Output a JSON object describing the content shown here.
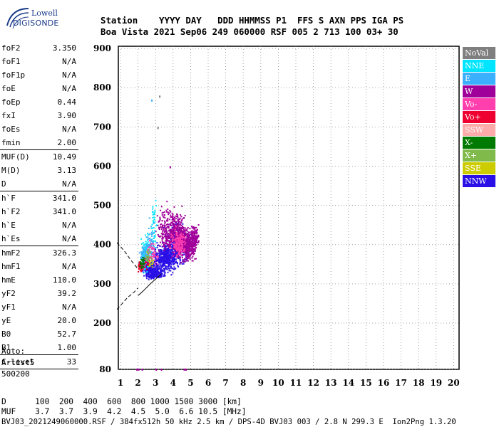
{
  "logo": {
    "line1": "Lowell",
    "line2": "DIGISONDE"
  },
  "header": {
    "row1": "Station    YYYY DAY   DDD HHMMSS P1  FFS S AXN PPS IGA PS",
    "row2": "Boa Vista 2021 Sep06 249 060000 RSF 005 2 713 100 03+ 30"
  },
  "params": [
    {
      "name": "foF2",
      "value": "3.350"
    },
    {
      "name": "foF1",
      "value": "N/A"
    },
    {
      "name": "foF1p",
      "value": "N/A"
    },
    {
      "name": "foE",
      "value": "N/A"
    },
    {
      "name": "foEp",
      "value": "0.44"
    },
    {
      "name": "fxI",
      "value": "3.90"
    },
    {
      "name": "foEs",
      "value": "N/A"
    },
    {
      "name": "fmin",
      "value": "2.00"
    },
    {
      "sep": true
    },
    {
      "name": "MUF(D)",
      "value": "10.49"
    },
    {
      "name": "M(D)",
      "value": "3.13"
    },
    {
      "name": "D",
      "value": "N/A"
    },
    {
      "sep": true
    },
    {
      "name": "h`F",
      "value": "341.0"
    },
    {
      "name": "h`F2",
      "value": "341.0"
    },
    {
      "name": "h`E",
      "value": "N/A"
    },
    {
      "name": "h`Es",
      "value": "N/A"
    },
    {
      "sep": true
    },
    {
      "name": "hmF2",
      "value": "326.3"
    },
    {
      "name": "hmF1",
      "value": "N/A"
    },
    {
      "name": "hmE",
      "value": "110.0"
    },
    {
      "name": "yF2",
      "value": "39.2"
    },
    {
      "name": "yF1",
      "value": "N/A"
    },
    {
      "name": "yE",
      "value": "20.0"
    },
    {
      "name": "B0",
      "value": "52.7"
    },
    {
      "name": "B1",
      "value": "1.00"
    },
    {
      "sep": true
    },
    {
      "name": "C-level",
      "value": "33"
    },
    {
      "sep": true
    }
  ],
  "auto": {
    "line1": "Auto:",
    "line2": "Artist5",
    "line3": "500200"
  },
  "legend": [
    {
      "label": "NoVal",
      "color": "#7f7f7f"
    },
    {
      "label": "NNE",
      "color": "#00e5ff"
    },
    {
      "label": "E",
      "color": "#3ab0ff"
    },
    {
      "label": "W",
      "color": "#a0009a"
    },
    {
      "label": "Vo-",
      "color": "#ff3fae"
    },
    {
      "label": "Vo+",
      "color": "#ee0030"
    },
    {
      "label": "SSW",
      "color": "#ffaaaa"
    },
    {
      "label": "X-",
      "color": "#007a00"
    },
    {
      "label": "X+",
      "color": "#7fba4a"
    },
    {
      "label": "SSE",
      "color": "#cccc00"
    },
    {
      "label": "NNW",
      "color": "#2a10e6"
    }
  ],
  "footer": {
    "line1": "D      100  200  400  600  800 1000 1500 3000 [km]",
    "line2": "MUF    3.7  3.7  3.9  4.2  4.5  5.0  6.6 10.5 [MHz]",
    "line3": "BVJ03_2021249060000.RSF / 384fx512h 50 kHz 2.5 km / DPS-4D BVJ03 003 / 2.8 N 299.3 E  Ion2Png 1.3.20"
  },
  "chart_data": {
    "type": "scatter",
    "title": "",
    "xlabel": "",
    "ylabel": "",
    "xlim": [
      0.8,
      20
    ],
    "ylim": [
      80,
      900
    ],
    "x_ticks": [
      1,
      2,
      3,
      4,
      5,
      6,
      7,
      8,
      9,
      10,
      11,
      12,
      13,
      14,
      15,
      16,
      17,
      18,
      19,
      20
    ],
    "y_ticks": [
      80,
      200,
      300,
      400,
      500,
      600,
      700,
      800,
      900
    ],
    "grid": true,
    "legend_placement": "right",
    "series": [
      {
        "name": "NNW",
        "color": "#2a10e6",
        "clusters": [
          [
            2.6,
            340,
            0.5,
            18,
            260
          ],
          [
            3.5,
            365,
            0.9,
            30,
            420
          ],
          [
            4.2,
            400,
            0.9,
            45,
            360
          ],
          [
            3.0,
            330,
            0.6,
            12,
            160
          ]
        ]
      },
      {
        "name": "W",
        "color": "#a0009a",
        "clusters": [
          [
            4.8,
            400,
            0.6,
            35,
            420
          ],
          [
            4.2,
            430,
            0.7,
            50,
            360
          ],
          [
            3.5,
            440,
            0.6,
            50,
            160
          ],
          [
            5.2,
            420,
            0.3,
            25,
            120
          ]
        ]
      },
      {
        "name": "NNE",
        "color": "#00e5ff",
        "clusters": [
          [
            2.4,
            380,
            0.4,
            45,
            110
          ],
          [
            2.9,
            445,
            0.2,
            60,
            40
          ]
        ]
      },
      {
        "name": "E",
        "color": "#3ab0ff",
        "clusters": [
          [
            2.3,
            370,
            0.35,
            30,
            90
          ],
          [
            2.7,
            400,
            0.3,
            45,
            60
          ]
        ]
      },
      {
        "name": "Vo-",
        "color": "#ff3fae",
        "clusters": [
          [
            4.3,
            405,
            0.6,
            28,
            160
          ],
          [
            2.8,
            380,
            0.4,
            25,
            50
          ]
        ]
      },
      {
        "name": "Vo+",
        "color": "#ee0030",
        "clusters": [
          [
            2.1,
            345,
            0.2,
            12,
            45
          ],
          [
            2.5,
            360,
            0.3,
            15,
            30
          ]
        ]
      },
      {
        "name": "X-",
        "color": "#007a00",
        "clusters": [
          [
            2.2,
            355,
            0.2,
            12,
            25
          ]
        ]
      },
      {
        "name": "X+",
        "color": "#7fba4a",
        "clusters": [
          [
            2.6,
            375,
            0.3,
            20,
            25
          ]
        ]
      },
      {
        "name": "SSE",
        "color": "#cccc00",
        "clusters": [
          [
            2.7,
            350,
            0.3,
            15,
            12
          ]
        ]
      }
    ],
    "scatter_points": [
      {
        "x": 2.75,
        "y": 770,
        "color": "#3ab0ff"
      },
      {
        "x": 3.2,
        "y": 780,
        "color": "#7f7f7f"
      },
      {
        "x": 3.1,
        "y": 700,
        "color": "#7f7f7f"
      },
      {
        "x": 3.8,
        "y": 600,
        "color": "#a0009a"
      },
      {
        "x": 1.9,
        "y": 82,
        "color": "#a0009a"
      },
      {
        "x": 2.0,
        "y": 82,
        "color": "#a0009a"
      },
      {
        "x": 2.2,
        "y": 82,
        "color": "#a0009a"
      },
      {
        "x": 3.0,
        "y": 82,
        "color": "#a0009a"
      },
      {
        "x": 3.3,
        "y": 82,
        "color": "#a0009a"
      },
      {
        "x": 4.6,
        "y": 82,
        "color": "#a0009a"
      },
      {
        "x": 4.7,
        "y": 82,
        "color": "#a0009a"
      }
    ],
    "trace_solid": [
      [
        2.0,
        270
      ],
      [
        2.3,
        282
      ],
      [
        2.7,
        300
      ],
      [
        3.0,
        312
      ],
      [
        3.3,
        325
      ]
    ],
    "trace_dashed": [
      [
        0.8,
        235
      ],
      [
        1.1,
        250
      ],
      [
        1.4,
        265
      ],
      [
        1.8,
        280
      ],
      [
        2.0,
        290
      ]
    ],
    "trace_dashed2": [
      [
        0.8,
        405
      ],
      [
        1.2,
        385
      ],
      [
        1.6,
        360
      ],
      [
        2.0,
        338
      ]
    ]
  }
}
